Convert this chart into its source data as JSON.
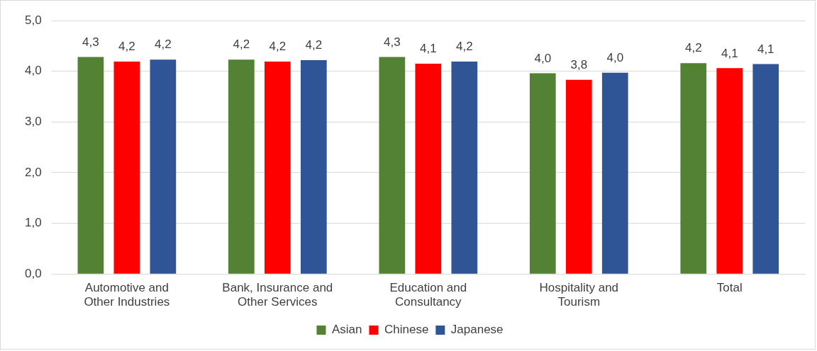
{
  "chart_data": {
    "type": "bar",
    "categories": [
      "Automotive and\nOther Industries",
      "Bank, Insurance and\nOther Services",
      "Education and\nConsultancy",
      "Hospitality and\nTourism",
      "Total"
    ],
    "series": [
      {
        "name": "Asian",
        "color": "#548235",
        "values": [
          4.28,
          4.23,
          4.28,
          3.96,
          4.16
        ],
        "value_labels": [
          "4,3",
          "4,2",
          "4,3",
          "4,0",
          "4,2"
        ]
      },
      {
        "name": "Chinese",
        "color": "#ff0000",
        "values": [
          4.19,
          4.19,
          4.15,
          3.83,
          4.06
        ],
        "value_labels": [
          "4,2",
          "4,2",
          "4,1",
          "3,8",
          "4,1"
        ]
      },
      {
        "name": "Japanese",
        "color": "#2f5597",
        "values": [
          4.23,
          4.22,
          4.19,
          3.97,
          4.14
        ],
        "value_labels": [
          "4,2",
          "4,2",
          "4,2",
          "4,0",
          "4,1"
        ]
      }
    ],
    "ylim": [
      0,
      5
    ],
    "yticks": [
      {
        "value": 0,
        "label": "0,0"
      },
      {
        "value": 1,
        "label": "1,0"
      },
      {
        "value": 2,
        "label": "2,0"
      },
      {
        "value": 3,
        "label": "3,0"
      },
      {
        "value": 4,
        "label": "4,0"
      },
      {
        "value": 5,
        "label": "5,0"
      }
    ],
    "grid": "y",
    "legend": "bottom"
  }
}
